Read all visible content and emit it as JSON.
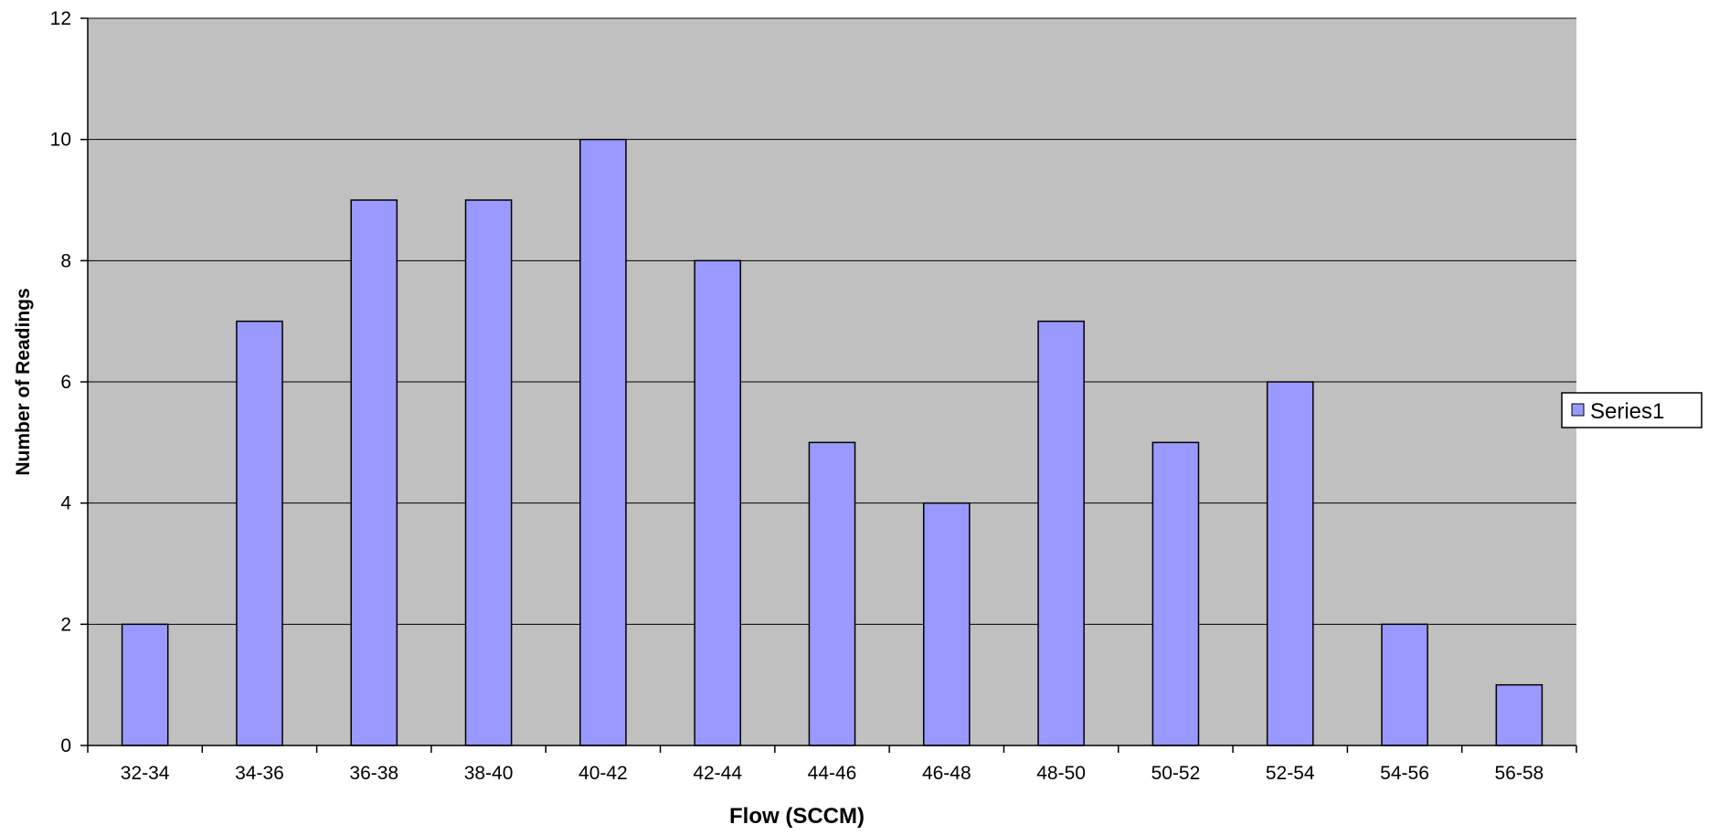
{
  "chart_data": {
    "type": "bar",
    "categories": [
      "32-34",
      "34-36",
      "36-38",
      "38-40",
      "40-42",
      "42-44",
      "44-46",
      "46-48",
      "48-50",
      "50-52",
      "52-54",
      "54-56",
      "56-58"
    ],
    "series": [
      {
        "name": "Series1",
        "values": [
          2,
          7,
          9,
          9,
          10,
          8,
          5,
          4,
          7,
          5,
          6,
          2,
          1
        ]
      }
    ],
    "title": "",
    "xlabel": "Flow (SCCM)",
    "ylabel": "Number of Readings",
    "ylim": [
      0,
      12
    ],
    "yticks": [
      0,
      2,
      4,
      6,
      8,
      10,
      12
    ],
    "grid": true,
    "legend_position": "right",
    "colors": {
      "plot_background": "#c0c0c0",
      "bar_fill": "#9999ff",
      "bar_stroke": "#000000",
      "gridline": "#000000"
    }
  }
}
